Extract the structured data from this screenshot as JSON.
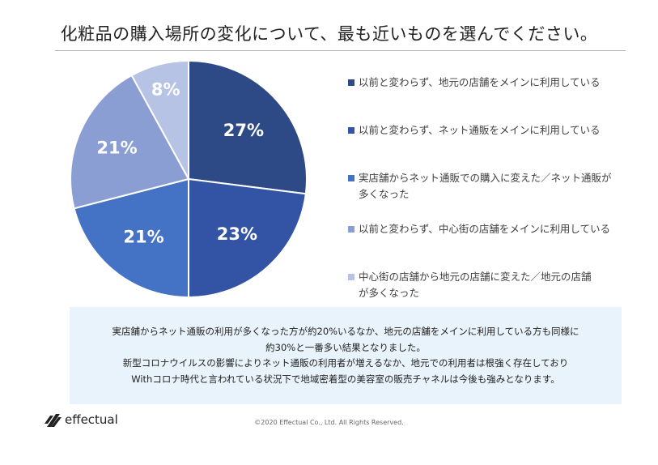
{
  "title": "化粧品の購入場所の変化について、最も近いものを選んでください。",
  "chart_data": {
    "type": "pie",
    "slices": [
      {
        "label": "以前と変わらず、地元の店舗をメインに利用している",
        "value": 27,
        "display": "27%",
        "color": "#2e4a86"
      },
      {
        "label": "以前と変わらず、ネット通販をメインに利用している",
        "value": 23,
        "display": "23%",
        "color": "#3353a4"
      },
      {
        "label": "実店舗からネット通販での購入に変えた／ネット通販が多くなった",
        "value": 21,
        "display": "21%",
        "color": "#4472c4"
      },
      {
        "label": "以前と変わらず、中心街の店舗をメインに利用している",
        "value": 21,
        "display": "21%",
        "color": "#8b9ed3"
      },
      {
        "label": "中心街の店舗から地元の店舗に変えた／地元の店舗が多くなった",
        "value": 8,
        "display": "8%",
        "color": "#b7c3e5"
      }
    ]
  },
  "legend": [
    {
      "line1": "以前と変わらず、地元の店舗をメインに利用している",
      "line2": ""
    },
    {
      "line1": "以前と変わらず、ネット通販をメインに利用している",
      "line2": ""
    },
    {
      "line1": "実店舗からネット通販での購入に変えた／ネット通販が",
      "line2": "多くなった"
    },
    {
      "line1": "以前と変わらず、中心街の店舗をメインに利用している",
      "line2": ""
    },
    {
      "line1": "中心街の店舗から地元の店舗に変えた／地元の店舗",
      "line2": "が多くなった"
    }
  ],
  "note": {
    "line1": "実店舗からネット通販の利用が多くなった方が約20%いるなか、地元の店舗をメインに利用している方も同様に",
    "line2": "約30%と一番多い結果となりました。",
    "line3": "新型コロナウイルスの影響によりネット通販の利用者が増えるなか、地元での利用者は根強く存在しており",
    "line4": "Withコロナ時代と言われている状況下で地域密着型の美容室の販売チャネルは今後も強みとなります。"
  },
  "footer": {
    "logo_text": "effectual",
    "copyright": "©2020 Effectual Co., Ltd. All Rights Reserved."
  }
}
